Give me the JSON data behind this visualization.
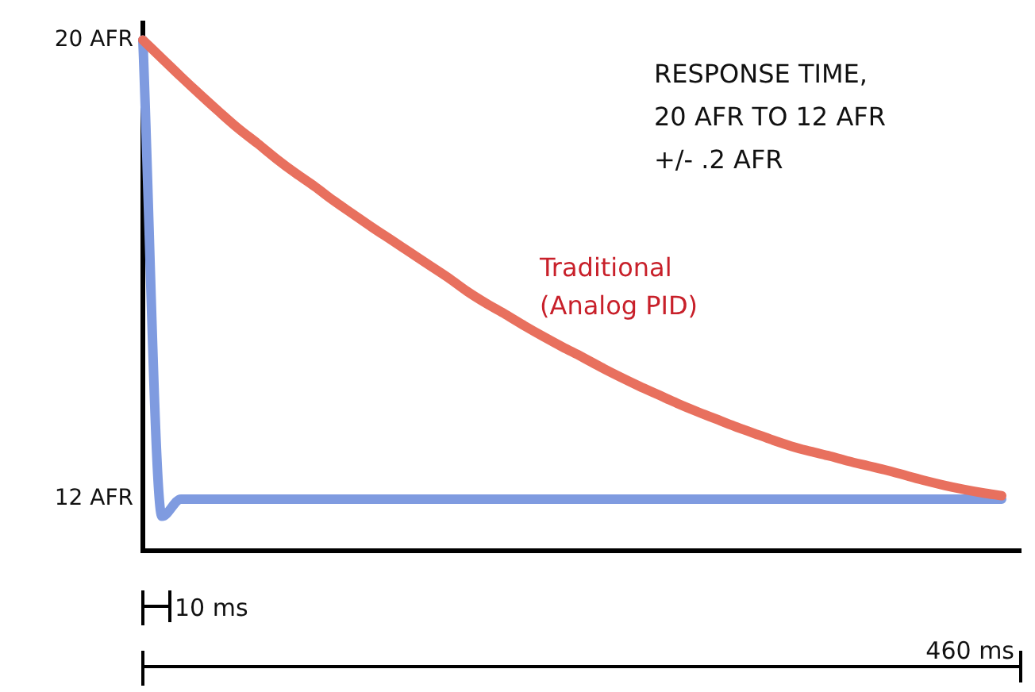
{
  "chart_data": {
    "type": "line",
    "annotations": [
      "RESPONSE TIME,\n20 AFR TO 12 AFR\n+/- .2 AFR",
      "10 ms",
      "460 ms"
    ],
    "categories": [
      null,
      null,
      null,
      null,
      null,
      null,
      null,
      null,
      null,
      null,
      null,
      null,
      null,
      null,
      null,
      null,
      null,
      null,
      null,
      null,
      null,
      null,
      null,
      null,
      null,
      null,
      null,
      null,
      null,
      null,
      null,
      null,
      null,
      null,
      null,
      null,
      null,
      null,
      null,
      null,
      null,
      null,
      null,
      null,
      null,
      null,
      null
    ],
    "series": [
      {
        "name": "Traditional (Analog PID)",
        "color": "#e8705e",
        "values": [
          20,
          19.68,
          19.36,
          19.05,
          18.75,
          18.46,
          18.2,
          17.93,
          17.68,
          17.45,
          17.2,
          16.97,
          16.74,
          16.52,
          16.3,
          16.08,
          15.86,
          15.62,
          15.41,
          15.22,
          15.02,
          14.83,
          14.65,
          14.48,
          14.3,
          14.13,
          13.97,
          13.82,
          13.67,
          13.53,
          13.4,
          13.27,
          13.15,
          13.03,
          12.92,
          12.83,
          12.75,
          12.66,
          12.58,
          12.5,
          12.41,
          12.32,
          12.24,
          12.17,
          12.11,
          12.06,
          null
        ]
      },
      {
        "color": "#7f9be0",
        "values": [
          20,
          11.7,
          12,
          12,
          12,
          12,
          12,
          12,
          12,
          12,
          12,
          12,
          12,
          12,
          12,
          12,
          12,
          12,
          12,
          12,
          12,
          12,
          12,
          12,
          12,
          12,
          12,
          12,
          12,
          12,
          12,
          12,
          12,
          12,
          12,
          12,
          12,
          12,
          12,
          12,
          12,
          12,
          12,
          12,
          12,
          12,
          null
        ]
      }
    ],
    "ylim": [
      11.1,
      20.3
    ],
    "yticks": [
      {
        "value": 12,
        "label": "12 AFR"
      },
      {
        "value": 20,
        "label": "20 AFR"
      }
    ],
    "tick_labels": "y",
    "grid": false,
    "legend": false,
    "marker": "none",
    "line_style": "solid"
  }
}
